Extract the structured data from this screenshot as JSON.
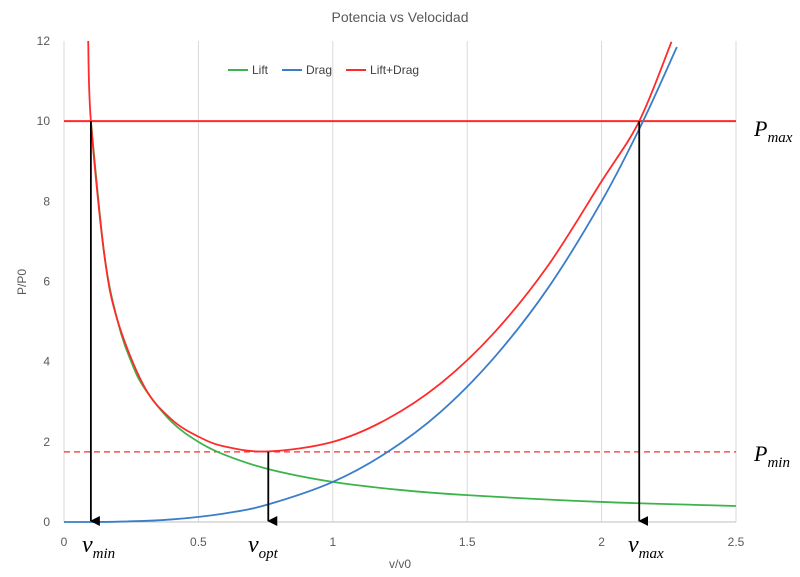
{
  "chart_data": {
    "type": "line",
    "title": "Potencia vs Velocidad",
    "xlabel": "v/v0",
    "ylabel": "P/P0",
    "xlim": [
      0,
      2.5
    ],
    "ylim": [
      0,
      12
    ],
    "x_ticks": [
      "0",
      "0.5",
      "1",
      "1.5",
      "2",
      "2.5"
    ],
    "y_ticks": [
      "0",
      "2",
      "4",
      "6",
      "8",
      "10",
      "12"
    ],
    "grid": "vertical",
    "legend_position": "top-left",
    "series": [
      {
        "name": "Lift",
        "color": "#3cb44b",
        "x": [
          0.1,
          0.15,
          0.2,
          0.25,
          0.3,
          0.4,
          0.5,
          0.6,
          0.76,
          1.0,
          1.25,
          1.5,
          2.0,
          2.5
        ],
        "y": [
          10.0,
          6.67,
          5.0,
          4.0,
          3.33,
          2.5,
          2.0,
          1.67,
          1.32,
          1.0,
          0.8,
          0.67,
          0.5,
          0.4
        ]
      },
      {
        "name": "Drag",
        "color": "#3a7dc9",
        "x": [
          0.0,
          0.2,
          0.4,
          0.6,
          0.76,
          1.0,
          1.2,
          1.4,
          1.6,
          1.8,
          2.0,
          2.15,
          2.28
        ],
        "y": [
          0.0,
          0.008,
          0.064,
          0.216,
          0.44,
          1.0,
          1.73,
          2.74,
          4.1,
          5.83,
          8.0,
          9.94,
          11.85
        ]
      },
      {
        "name": "Lift+Drag",
        "color": "#ff2a2a",
        "x": [
          0.09,
          0.1,
          0.15,
          0.2,
          0.3,
          0.4,
          0.5,
          0.6,
          0.76,
          1.0,
          1.2,
          1.4,
          1.6,
          1.8,
          2.0,
          2.14,
          2.26
        ],
        "y": [
          12.0,
          10.0,
          6.67,
          5.01,
          3.36,
          2.56,
          2.13,
          1.88,
          1.76,
          2.0,
          2.56,
          3.45,
          4.72,
          6.39,
          8.5,
          10.0,
          11.98
        ]
      }
    ],
    "reference_lines": [
      {
        "label": "P_max",
        "y": 10,
        "style": "solid",
        "color": "#ff2a2a"
      },
      {
        "label": "P_min",
        "y": 1.75,
        "style": "dashed",
        "color": "#ff2a2a"
      }
    ],
    "arrows": [
      {
        "label": "v_min",
        "x": 0.1,
        "from_y": 10
      },
      {
        "label": "v_opt",
        "x": 0.76,
        "from_y": 1.75
      },
      {
        "label": "v_max",
        "x": 2.14,
        "from_y": 10
      }
    ]
  },
  "legend_labels": [
    "Lift",
    "Drag",
    "Lift+Drag"
  ],
  "annotations": {
    "pmax_base": "P",
    "pmax_sub": "max",
    "pmin_base": "P",
    "pmin_sub": "min",
    "vmin_base": "v",
    "vmin_sub": "min",
    "vopt_base": "v",
    "vopt_sub": "opt",
    "vmax_base": "v",
    "vmax_sub": "max"
  }
}
